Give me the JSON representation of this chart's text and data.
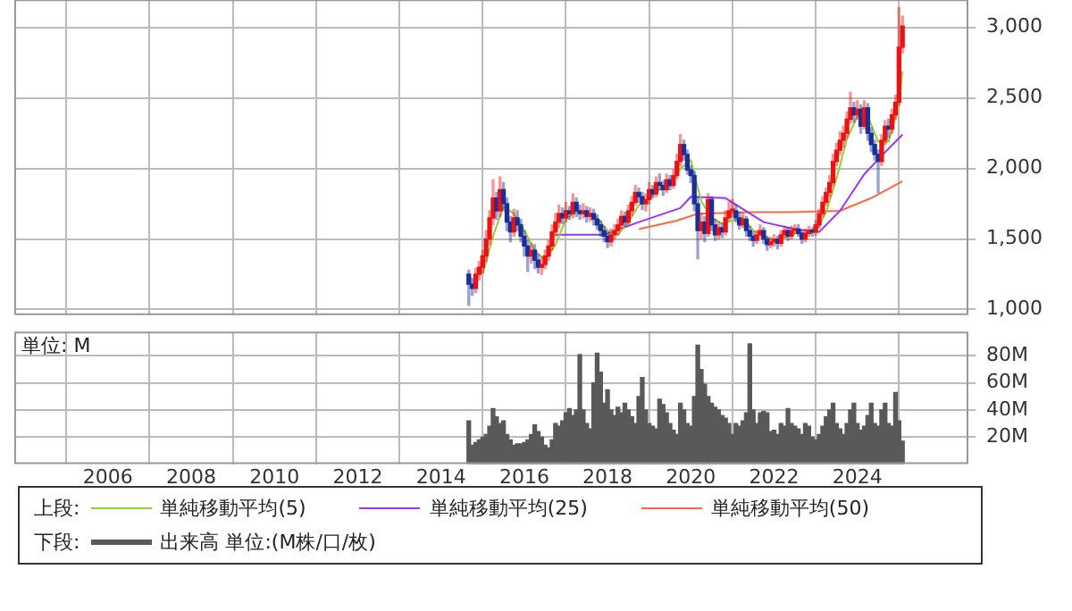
{
  "chart_data": [
    {
      "type": "candlestick",
      "legend": "bottom",
      "legend_title": "上段:",
      "grid": true,
      "marker": "none",
      "tick_labels": "y",
      "xlim": [
        "2003-10",
        "2026-09"
      ],
      "xticks": [
        "2006",
        "2008",
        "2010",
        "2012",
        "2014",
        "2016",
        "2018",
        "2020",
        "2022",
        "2024"
      ],
      "ylim": [
        960,
        3200
      ],
      "yticks": [
        {
          "value": 1000,
          "label": "1,000"
        },
        {
          "value": 1500,
          "label": "1,500"
        },
        {
          "value": 2000,
          "label": "2,000"
        },
        {
          "value": 2500,
          "label": "2,500"
        },
        {
          "value": 3000,
          "label": "3,000"
        }
      ],
      "x": [
        "2014-09",
        "2014-10",
        "2014-11",
        "2014-12",
        "2015-01",
        "2015-02",
        "2015-03",
        "2015-04",
        "2015-05",
        "2015-06",
        "2015-07",
        "2015-08",
        "2015-09",
        "2015-10",
        "2015-11",
        "2015-12",
        "2016-01",
        "2016-02",
        "2016-03",
        "2016-04",
        "2016-05",
        "2016-06",
        "2016-07",
        "2016-08",
        "2016-09",
        "2016-10",
        "2016-11",
        "2016-12",
        "2017-01",
        "2017-02",
        "2017-03",
        "2017-04",
        "2017-05",
        "2017-06",
        "2017-07",
        "2017-08",
        "2017-09",
        "2017-10",
        "2017-11",
        "2017-12",
        "2018-01",
        "2018-02",
        "2018-03",
        "2018-04",
        "2018-05",
        "2018-06",
        "2018-07",
        "2018-08",
        "2018-09",
        "2018-10",
        "2018-11",
        "2018-12",
        "2019-01",
        "2019-02",
        "2019-03",
        "2019-04",
        "2019-05",
        "2019-06",
        "2019-07",
        "2019-08",
        "2019-09",
        "2019-10",
        "2019-11",
        "2019-12",
        "2020-01",
        "2020-02",
        "2020-03",
        "2020-04",
        "2020-05",
        "2020-06",
        "2020-07",
        "2020-08",
        "2020-09",
        "2020-10",
        "2020-11",
        "2020-12",
        "2021-01",
        "2021-02",
        "2021-03",
        "2021-04",
        "2021-05",
        "2021-06",
        "2021-07",
        "2021-08",
        "2021-09",
        "2021-10",
        "2021-11",
        "2021-12",
        "2022-01",
        "2022-02",
        "2022-03",
        "2022-04",
        "2022-05",
        "2022-06",
        "2022-07",
        "2022-08",
        "2022-09",
        "2022-10",
        "2022-11",
        "2022-12",
        "2023-01",
        "2023-02",
        "2023-03",
        "2023-04",
        "2023-05",
        "2023-06",
        "2023-07",
        "2023-08",
        "2023-09",
        "2023-10",
        "2023-11",
        "2023-12",
        "2024-01",
        "2024-02",
        "2024-03",
        "2024-04",
        "2024-05",
        "2024-06",
        "2024-07",
        "2024-08",
        "2024-09",
        "2024-10",
        "2024-11",
        "2024-12",
        "2025-01",
        "2025-02"
      ],
      "series": [
        {
          "ohlc": [
            [
              1250,
              1280,
              1030,
              1180
            ],
            [
              1180,
              1220,
              1100,
              1150
            ],
            [
              1150,
              1290,
              1120,
              1250
            ],
            [
              1250,
              1340,
              1210,
              1300
            ],
            [
              1300,
              1420,
              1260,
              1380
            ],
            [
              1380,
              1560,
              1340,
              1500
            ],
            [
              1500,
              1700,
              1460,
              1650
            ],
            [
              1650,
              1920,
              1600,
              1790
            ],
            [
              1790,
              1830,
              1640,
              1700
            ],
            [
              1700,
              1940,
              1660,
              1850
            ],
            [
              1850,
              1900,
              1700,
              1750
            ],
            [
              1750,
              1790,
              1560,
              1620
            ],
            [
              1620,
              1660,
              1480,
              1550
            ],
            [
              1550,
              1710,
              1520,
              1650
            ],
            [
              1650,
              1700,
              1560,
              1600
            ],
            [
              1600,
              1640,
              1480,
              1520
            ],
            [
              1520,
              1560,
              1380,
              1450
            ],
            [
              1450,
              1490,
              1270,
              1380
            ],
            [
              1380,
              1470,
              1330,
              1420
            ],
            [
              1420,
              1460,
              1290,
              1350
            ],
            [
              1350,
              1390,
              1260,
              1300
            ],
            [
              1300,
              1370,
              1250,
              1320
            ],
            [
              1320,
              1420,
              1290,
              1380
            ],
            [
              1380,
              1490,
              1350,
              1450
            ],
            [
              1450,
              1600,
              1420,
              1550
            ],
            [
              1550,
              1680,
              1520,
              1620
            ],
            [
              1620,
              1740,
              1580,
              1680
            ],
            [
              1680,
              1720,
              1610,
              1650
            ],
            [
              1650,
              1760,
              1620,
              1700
            ],
            [
              1700,
              1730,
              1640,
              1680
            ],
            [
              1680,
              1820,
              1650,
              1760
            ],
            [
              1760,
              1790,
              1660,
              1700
            ],
            [
              1700,
              1740,
              1640,
              1680
            ],
            [
              1680,
              1750,
              1650,
              1700
            ],
            [
              1700,
              1730,
              1620,
              1660
            ],
            [
              1660,
              1720,
              1630,
              1680
            ],
            [
              1680,
              1710,
              1600,
              1640
            ],
            [
              1640,
              1670,
              1570,
              1600
            ],
            [
              1600,
              1630,
              1520,
              1560
            ],
            [
              1560,
              1590,
              1480,
              1520
            ],
            [
              1520,
              1550,
              1440,
              1480
            ],
            [
              1480,
              1570,
              1450,
              1530
            ],
            [
              1530,
              1600,
              1500,
              1560
            ],
            [
              1560,
              1640,
              1530,
              1600
            ],
            [
              1600,
              1700,
              1580,
              1660
            ],
            [
              1660,
              1690,
              1590,
              1620
            ],
            [
              1620,
              1740,
              1600,
              1700
            ],
            [
              1700,
              1800,
              1670,
              1760
            ],
            [
              1760,
              1880,
              1740,
              1830
            ],
            [
              1830,
              1860,
              1760,
              1800
            ],
            [
              1800,
              1830,
              1710,
              1750
            ],
            [
              1750,
              1820,
              1700,
              1780
            ],
            [
              1780,
              1900,
              1750,
              1850
            ],
            [
              1850,
              1880,
              1790,
              1820
            ],
            [
              1820,
              1940,
              1800,
              1900
            ],
            [
              1900,
              1960,
              1850,
              1880
            ],
            [
              1880,
              1910,
              1810,
              1850
            ],
            [
              1850,
              1960,
              1830,
              1920
            ],
            [
              1920,
              1950,
              1850,
              1880
            ],
            [
              1880,
              1990,
              1860,
              1950
            ],
            [
              1950,
              2100,
              1930,
              2050
            ],
            [
              2050,
              2240,
              2020,
              2170
            ],
            [
              2170,
              2200,
              2060,
              2100
            ],
            [
              2100,
              2130,
              1960,
              1990
            ],
            [
              1990,
              2020,
              1900,
              1950
            ],
            [
              1950,
              1980,
              1700,
              1750
            ],
            [
              1750,
              1800,
              1360,
              1560
            ],
            [
              1560,
              1680,
              1500,
              1620
            ],
            [
              1620,
              1660,
              1480,
              1540
            ],
            [
              1540,
              1820,
              1520,
              1780
            ],
            [
              1780,
              1800,
              1560,
              1600
            ],
            [
              1600,
              1640,
              1490,
              1530
            ],
            [
              1530,
              1620,
              1500,
              1580
            ],
            [
              1580,
              1610,
              1510,
              1550
            ],
            [
              1550,
              1700,
              1530,
              1650
            ],
            [
              1650,
              1760,
              1630,
              1700
            ],
            [
              1700,
              1780,
              1660,
              1700
            ],
            [
              1700,
              1740,
              1620,
              1650
            ],
            [
              1650,
              1690,
              1570,
              1600
            ],
            [
              1600,
              1680,
              1580,
              1640
            ],
            [
              1640,
              1660,
              1520,
              1560
            ],
            [
              1560,
              1590,
              1490,
              1520
            ],
            [
              1520,
              1550,
              1450,
              1490
            ],
            [
              1490,
              1560,
              1470,
              1530
            ],
            [
              1530,
              1600,
              1510,
              1560
            ],
            [
              1560,
              1580,
              1470,
              1500
            ],
            [
              1500,
              1520,
              1420,
              1460
            ],
            [
              1460,
              1510,
              1440,
              1480
            ],
            [
              1480,
              1530,
              1450,
              1500
            ],
            [
              1500,
              1520,
              1430,
              1470
            ],
            [
              1470,
              1560,
              1450,
              1530
            ],
            [
              1530,
              1590,
              1510,
              1560
            ],
            [
              1560,
              1580,
              1490,
              1520
            ],
            [
              1520,
              1590,
              1500,
              1560
            ],
            [
              1560,
              1600,
              1540,
              1570
            ],
            [
              1570,
              1600,
              1520,
              1540
            ],
            [
              1540,
              1560,
              1470,
              1500
            ],
            [
              1500,
              1570,
              1480,
              1540
            ],
            [
              1540,
              1590,
              1520,
              1560
            ],
            [
              1560,
              1580,
              1520,
              1550
            ],
            [
              1550,
              1630,
              1530,
              1600
            ],
            [
              1600,
              1710,
              1580,
              1680
            ],
            [
              1680,
              1800,
              1660,
              1760
            ],
            [
              1760,
              1860,
              1740,
              1830
            ],
            [
              1830,
              1950,
              1800,
              1900
            ],
            [
              1900,
              2100,
              1880,
              2050
            ],
            [
              2050,
              2180,
              2020,
              2130
            ],
            [
              2130,
              2260,
              2100,
              2200
            ],
            [
              2200,
              2300,
              2150,
              2250
            ],
            [
              2250,
              2400,
              2220,
              2350
            ],
            [
              2350,
              2540,
              2320,
              2430
            ],
            [
              2430,
              2470,
              2330,
              2380
            ],
            [
              2380,
              2480,
              2350,
              2420
            ],
            [
              2420,
              2450,
              2250,
              2300
            ],
            [
              2300,
              2480,
              2280,
              2430
            ],
            [
              2430,
              2460,
              2200,
              2250
            ],
            [
              2250,
              2290,
              2120,
              2170
            ],
            [
              2170,
              2200,
              2060,
              2100
            ],
            [
              2100,
              2130,
              1830,
              2050
            ],
            [
              2050,
              2240,
              2020,
              2200
            ],
            [
              2200,
              2340,
              2170,
              2300
            ],
            [
              2300,
              2350,
              2220,
              2280
            ],
            [
              2280,
              2420,
              2250,
              2380
            ],
            [
              2380,
              2520,
              2350,
              2470
            ],
            [
              2470,
              3140,
              2450,
              2860
            ],
            [
              2860,
              3080,
              2820,
              3010
            ]
          ],
          "colors": [
            "#1a2f99",
            "#1a2f99",
            "#ee1111",
            "#ee1111",
            "#ee1111",
            "#ee1111",
            "#ee1111",
            "#ee1111",
            "#1a2f99",
            "#ee1111",
            "#1a2f99",
            "#1a2f99",
            "#1a2f99",
            "#ee1111",
            "#1a2f99",
            "#1a2f99",
            "#1a2f99",
            "#1a2f99",
            "#ee1111",
            "#1a2f99",
            "#1a2f99",
            "#ee1111",
            "#ee1111",
            "#ee1111",
            "#ee1111",
            "#ee1111",
            "#ee1111",
            "#1a2f99",
            "#ee1111",
            "#1a2f99",
            "#ee1111",
            "#1a2f99",
            "#1a2f99",
            "#ee1111",
            "#1a2f99",
            "#ee1111",
            "#1a2f99",
            "#1a2f99",
            "#1a2f99",
            "#1a2f99",
            "#1a2f99",
            "#ee1111",
            "#ee1111",
            "#ee1111",
            "#ee1111",
            "#1a2f99",
            "#ee1111",
            "#ee1111",
            "#ee1111",
            "#1a2f99",
            "#1a2f99",
            "#ee1111",
            "#ee1111",
            "#1a2f99",
            "#ee1111",
            "#1a2f99",
            "#1a2f99",
            "#ee1111",
            "#1a2f99",
            "#ee1111",
            "#ee1111",
            "#ee1111",
            "#1a2f99",
            "#1a2f99",
            "#1a2f99",
            "#1a2f99",
            "#1a2f99",
            "#ee1111",
            "#1a2f99",
            "#ee1111",
            "#1a2f99",
            "#1a2f99",
            "#ee1111",
            "#1a2f99",
            "#ee1111",
            "#ee1111",
            "#ee1111",
            "#1a2f99",
            "#1a2f99",
            "#ee1111",
            "#1a2f99",
            "#1a2f99",
            "#1a2f99",
            "#ee1111",
            "#ee1111",
            "#1a2f99",
            "#1a2f99",
            "#ee1111",
            "#ee1111",
            "#1a2f99",
            "#ee1111",
            "#ee1111",
            "#1a2f99",
            "#ee1111",
            "#ee1111",
            "#1a2f99",
            "#1a2f99",
            "#ee1111",
            "#ee1111",
            "#1a2f99",
            "#ee1111",
            "#ee1111",
            "#ee1111",
            "#ee1111",
            "#ee1111",
            "#ee1111",
            "#ee1111",
            "#ee1111",
            "#ee1111",
            "#ee1111",
            "#ee1111",
            "#1a2f99",
            "#ee1111",
            "#1a2f99",
            "#ee1111",
            "#1a2f99",
            "#1a2f99",
            "#1a2f99",
            "#1a2f99",
            "#ee1111",
            "#ee1111",
            "#1a2f99",
            "#ee1111",
            "#ee1111",
            "#ee1111",
            "#ee1111"
          ]
        },
        {
          "type": "line",
          "name": "単純移動平均(5)",
          "color": "#99cc33",
          "x": [
            "2015-01",
            "2015-04",
            "2015-07",
            "2015-10",
            "2016-01",
            "2016-04",
            "2016-07",
            "2016-10",
            "2017-01",
            "2017-04",
            "2017-07",
            "2017-10",
            "2018-01",
            "2018-04",
            "2018-07",
            "2018-10",
            "2019-01",
            "2019-04",
            "2019-07",
            "2019-10",
            "2020-01",
            "2020-04",
            "2020-07",
            "2020-10",
            "2021-01",
            "2021-04",
            "2021-07",
            "2021-10",
            "2022-01",
            "2022-04",
            "2022-07",
            "2022-10",
            "2023-01",
            "2023-04",
            "2023-07",
            "2023-10",
            "2024-01",
            "2024-04",
            "2024-07",
            "2024-10",
            "2025-01",
            "2025-02"
          ],
          "values": [
            1250,
            1520,
            1730,
            1680,
            1560,
            1420,
            1350,
            1460,
            1640,
            1700,
            1690,
            1650,
            1560,
            1530,
            1620,
            1740,
            1790,
            1850,
            1880,
            2000,
            2060,
            1770,
            1650,
            1610,
            1630,
            1650,
            1560,
            1520,
            1490,
            1510,
            1540,
            1540,
            1550,
            1690,
            1930,
            2210,
            2370,
            2370,
            2190,
            2190,
            2450,
            2690
          ]
        },
        {
          "type": "line",
          "name": "単純移動平均(25)",
          "color": "#9933ff",
          "x": [
            "2016-10",
            "2017-06",
            "2017-12",
            "2018-10",
            "2019-10",
            "2020-01",
            "2020-11",
            "2021-10",
            "2022-07",
            "2023-02",
            "2023-08",
            "2024-03",
            "2024-08",
            "2025-02"
          ],
          "values": [
            1530,
            1530,
            1530,
            1620,
            1720,
            1800,
            1790,
            1620,
            1570,
            1550,
            1700,
            1960,
            2090,
            2240
          ]
        },
        {
          "type": "line",
          "name": "単純移動平均(50)",
          "color": "#ff6644",
          "x": [
            "2018-10",
            "2019-09",
            "2020-03",
            "2021-06",
            "2022-06",
            "2023-08",
            "2024-05",
            "2025-02"
          ],
          "values": [
            1570,
            1630,
            1680,
            1690,
            1690,
            1700,
            1790,
            1910
          ]
        }
      ]
    },
    {
      "type": "bar",
      "legend": "bottom",
      "legend_title": "下段:",
      "grid": true,
      "ylabel": "単位: M",
      "xlim": [
        "2003-10",
        "2026-09"
      ],
      "xticks": [
        "2006",
        "2008",
        "2010",
        "2012",
        "2014",
        "2016",
        "2018",
        "2020",
        "2022",
        "2024"
      ],
      "ylim": [
        0,
        98
      ],
      "yticks": [
        {
          "value": 20,
          "label": "20M"
        },
        {
          "value": 40,
          "label": "40M"
        },
        {
          "value": 60,
          "label": "60M"
        },
        {
          "value": 80,
          "label": "80M"
        }
      ],
      "x": [
        "2014-09",
        "2014-10",
        "2014-11",
        "2014-12",
        "2015-01",
        "2015-02",
        "2015-03",
        "2015-04",
        "2015-05",
        "2015-06",
        "2015-07",
        "2015-08",
        "2015-09",
        "2015-10",
        "2015-11",
        "2015-12",
        "2016-01",
        "2016-02",
        "2016-03",
        "2016-04",
        "2016-05",
        "2016-06",
        "2016-07",
        "2016-08",
        "2016-09",
        "2016-10",
        "2016-11",
        "2016-12",
        "2017-01",
        "2017-02",
        "2017-03",
        "2017-04",
        "2017-05",
        "2017-06",
        "2017-07",
        "2017-08",
        "2017-09",
        "2017-10",
        "2017-11",
        "2017-12",
        "2018-01",
        "2018-02",
        "2018-03",
        "2018-04",
        "2018-05",
        "2018-06",
        "2018-07",
        "2018-08",
        "2018-09",
        "2018-10",
        "2018-11",
        "2018-12",
        "2019-01",
        "2019-02",
        "2019-03",
        "2019-04",
        "2019-05",
        "2019-06",
        "2019-07",
        "2019-08",
        "2019-09",
        "2019-10",
        "2019-11",
        "2019-12",
        "2020-01",
        "2020-02",
        "2020-03",
        "2020-04",
        "2020-05",
        "2020-06",
        "2020-07",
        "2020-08",
        "2020-09",
        "2020-10",
        "2020-11",
        "2020-12",
        "2021-01",
        "2021-02",
        "2021-03",
        "2021-04",
        "2021-05",
        "2021-06",
        "2021-07",
        "2021-08",
        "2021-09",
        "2021-10",
        "2021-11",
        "2021-12",
        "2022-01",
        "2022-02",
        "2022-03",
        "2022-04",
        "2022-05",
        "2022-06",
        "2022-07",
        "2022-08",
        "2022-09",
        "2022-10",
        "2022-11",
        "2022-12",
        "2023-01",
        "2023-02",
        "2023-03",
        "2023-04",
        "2023-05",
        "2023-06",
        "2023-07",
        "2023-08",
        "2023-09",
        "2023-10",
        "2023-11",
        "2023-12",
        "2024-01",
        "2024-02",
        "2024-03",
        "2024-04",
        "2024-05",
        "2024-06",
        "2024-07",
        "2024-08",
        "2024-09",
        "2024-10",
        "2024-11",
        "2024-12",
        "2025-01",
        "2025-02"
      ],
      "series": [
        {
          "name": "出来高 単位:(M株/口/枚)",
          "color": "#595959",
          "values": [
            32,
            14,
            16,
            18,
            20,
            22,
            28,
            41,
            35,
            30,
            32,
            22,
            18,
            14,
            15,
            15,
            16,
            18,
            22,
            29,
            24,
            20,
            14,
            12,
            18,
            30,
            28,
            32,
            38,
            41,
            36,
            40,
            81,
            40,
            30,
            26,
            60,
            82,
            68,
            45,
            55,
            40,
            36,
            42,
            38,
            45,
            40,
            35,
            30,
            50,
            64,
            40,
            30,
            28,
            26,
            48,
            44,
            38,
            30,
            25,
            22,
            45,
            40,
            30,
            28,
            50,
            88,
            70,
            59,
            50,
            45,
            42,
            40,
            36,
            34,
            30,
            22,
            30,
            28,
            32,
            38,
            89,
            40,
            30,
            38,
            39,
            38,
            24,
            25,
            22,
            30,
            28,
            41,
            30,
            28,
            26,
            22,
            30,
            28,
            20,
            18,
            22,
            28,
            35,
            40,
            45,
            30,
            26,
            22,
            30,
            40,
            45,
            30,
            25,
            28,
            36,
            45,
            30,
            28,
            40,
            45,
            30,
            28,
            53,
            32,
            17
          ]
        }
      ]
    }
  ]
}
